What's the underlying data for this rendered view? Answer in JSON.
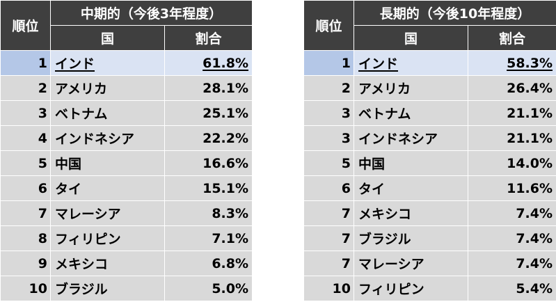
{
  "tables": [
    {
      "rank_header": "順位",
      "title": "中期的（今後3年程度）",
      "country_header": "国",
      "ratio_header": "割合",
      "rows": [
        {
          "rank": "1",
          "country": "インド",
          "ratio": "61.8%"
        },
        {
          "rank": "2",
          "country": "アメリカ",
          "ratio": "28.1%"
        },
        {
          "rank": "3",
          "country": "ベトナム",
          "ratio": "25.1%"
        },
        {
          "rank": "4",
          "country": "インドネシア",
          "ratio": "22.2%"
        },
        {
          "rank": "5",
          "country": "中国",
          "ratio": "16.6%"
        },
        {
          "rank": "6",
          "country": "タイ",
          "ratio": "15.1%"
        },
        {
          "rank": "7",
          "country": "マレーシア",
          "ratio": "8.3%"
        },
        {
          "rank": "8",
          "country": "フィリピン",
          "ratio": "7.1%"
        },
        {
          "rank": "9",
          "country": "メキシコ",
          "ratio": "6.8%"
        },
        {
          "rank": "10",
          "country": "ブラジル",
          "ratio": "5.0%"
        }
      ]
    },
    {
      "rank_header": "順位",
      "title": "長期的（今後10年程度）",
      "country_header": "国",
      "ratio_header": "割合",
      "rows": [
        {
          "rank": "1",
          "country": "インド",
          "ratio": "58.3%"
        },
        {
          "rank": "2",
          "country": "アメリカ",
          "ratio": "26.4%"
        },
        {
          "rank": "3",
          "country": "ベトナム",
          "ratio": "21.1%"
        },
        {
          "rank": "3",
          "country": "インドネシア",
          "ratio": "21.1%"
        },
        {
          "rank": "5",
          "country": "中国",
          "ratio": "14.0%"
        },
        {
          "rank": "6",
          "country": "タイ",
          "ratio": "11.6%"
        },
        {
          "rank": "7",
          "country": "メキシコ",
          "ratio": "7.4%"
        },
        {
          "rank": "7",
          "country": "ブラジル",
          "ratio": "7.4%"
        },
        {
          "rank": "7",
          "country": "マレーシア",
          "ratio": "7.4%"
        },
        {
          "rank": "10",
          "country": "フィリピン",
          "ratio": "5.4%"
        }
      ]
    }
  ],
  "colors": {
    "header_bg": "#3f3f3f",
    "row_bg": "#d9d9d9",
    "highlight_row_bg": "#dae3f3",
    "highlight_rank_bg": "#b4c7e7"
  }
}
